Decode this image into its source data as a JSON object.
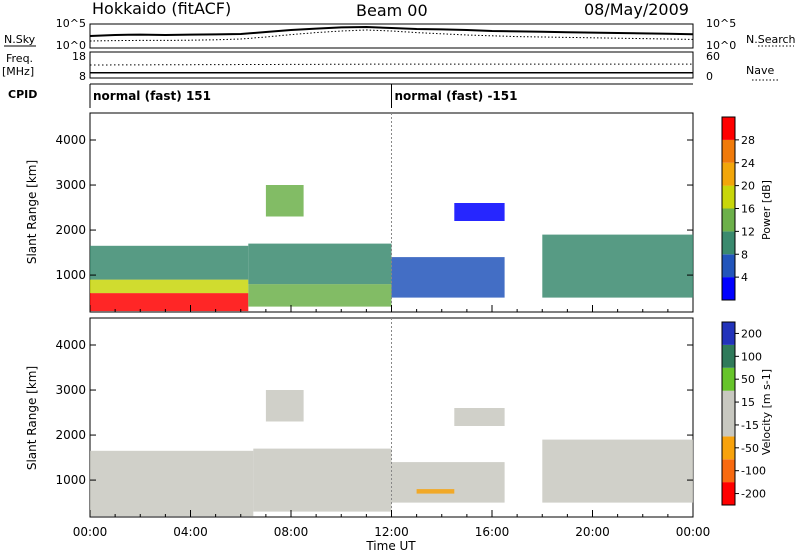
{
  "header": {
    "station": "Hokkaido (fitACF)",
    "beam": "Beam 00",
    "date": "08/May/2009"
  },
  "side_labels": {
    "nsky": "N.Sky",
    "nsearch": "N.Search",
    "freq": "Freq.",
    "mhz": "[MHz]",
    "nave": "Nave",
    "cpid": "CPID"
  },
  "colors": {
    "power": [
      "#0000ff",
      "#2255bb",
      "#3a8a6e",
      "#6cb04a",
      "#c8d60a",
      "#f2a60a",
      "#f07a0a",
      "#ff0000"
    ],
    "velocity": [
      "#ff0000",
      "#f86a10",
      "#f7a20c",
      "#c8c8c0",
      "#c8c8c0",
      "#66c42a",
      "#2f7a5a",
      "#2233bb"
    ]
  },
  "chart_data": [
    {
      "type": "line",
      "title": "",
      "ylabel_left": "N.Sky",
      "ylabel_right": "N.Search",
      "left_ticks": [
        "10^5",
        "10^0"
      ],
      "right_ticks": [
        "10^5",
        "10^0"
      ],
      "series": [
        {
          "name": "N.Sky",
          "style": "solid",
          "x": [
            0,
            1,
            2,
            3,
            4,
            5,
            6,
            7,
            8,
            9,
            10,
            11,
            12,
            13,
            14,
            15,
            16,
            17,
            18,
            19,
            20,
            21,
            22,
            23,
            24
          ],
          "y": [
            0.55,
            0.6,
            0.62,
            0.6,
            0.62,
            0.63,
            0.65,
            0.75,
            0.85,
            0.92,
            0.98,
            1.0,
            0.95,
            0.9,
            0.88,
            0.85,
            0.8,
            0.78,
            0.76,
            0.74,
            0.72,
            0.7,
            0.68,
            0.66,
            0.64
          ]
        },
        {
          "name": "N.Search",
          "style": "dotted",
          "x": [
            0,
            1,
            2,
            3,
            4,
            5,
            6,
            7,
            8,
            9,
            10,
            11,
            12,
            13,
            14,
            15,
            16,
            17,
            18,
            19,
            20,
            21,
            22,
            23,
            24
          ],
          "y": [
            0.3,
            0.32,
            0.33,
            0.33,
            0.34,
            0.36,
            0.4,
            0.5,
            0.62,
            0.72,
            0.8,
            0.85,
            0.8,
            0.72,
            0.66,
            0.6,
            0.56,
            0.52,
            0.5,
            0.48,
            0.46,
            0.44,
            0.42,
            0.4,
            0.38
          ]
        }
      ]
    },
    {
      "type": "line",
      "title": "",
      "ylabel_left": "Freq. [MHz]",
      "ylabel_right": "Nave",
      "left_ticks": [
        "18",
        "8"
      ],
      "right_ticks": [
        "60",
        "0"
      ],
      "series": [
        {
          "name": "Freq.",
          "style": "solid",
          "x": [
            0,
            12,
            24
          ],
          "y": [
            10,
            10,
            10
          ]
        },
        {
          "name": "Nave",
          "style": "dotted",
          "x": [
            0,
            12,
            24
          ],
          "y": [
            30,
            32,
            32
          ]
        }
      ]
    },
    {
      "type": "table",
      "label": "CPID",
      "segments": [
        {
          "start": 0,
          "label": "normal (fast) 151"
        },
        {
          "start": 12,
          "label": "normal (fast) -151"
        }
      ]
    },
    {
      "type": "heatmap",
      "quantity": "Power",
      "xlabel": "",
      "ylabel": "Slant Range [km]",
      "xlim": [
        0,
        24
      ],
      "ylim": [
        180,
        4600
      ],
      "yticks": [
        1000,
        2000,
        3000,
        4000
      ],
      "colorbar": {
        "label": "Power [dB]",
        "ticks": [
          4,
          8,
          12,
          16,
          20,
          24,
          28
        ]
      },
      "regions": [
        {
          "x0": 0.0,
          "x1": 6.3,
          "y0": 200,
          "y1": 600,
          "level": 7
        },
        {
          "x0": 0.0,
          "x1": 6.3,
          "y0": 600,
          "y1": 900,
          "level": 4
        },
        {
          "x0": 0.0,
          "x1": 6.3,
          "y0": 900,
          "y1": 1650,
          "level": 2
        },
        {
          "x0": 6.3,
          "x1": 12.0,
          "y0": 300,
          "y1": 800,
          "level": 3
        },
        {
          "x0": 6.3,
          "x1": 12.0,
          "y0": 800,
          "y1": 1700,
          "level": 2
        },
        {
          "x0": 7.0,
          "x1": 8.5,
          "y0": 2300,
          "y1": 3000,
          "level": 3
        },
        {
          "x0": 12.0,
          "x1": 16.5,
          "y0": 500,
          "y1": 1400,
          "level": 1
        },
        {
          "x0": 14.5,
          "x1": 16.5,
          "y0": 2200,
          "y1": 2600,
          "level": 0
        },
        {
          "x0": 18.0,
          "x1": 24.0,
          "y0": 500,
          "y1": 1900,
          "level": 2
        }
      ]
    },
    {
      "type": "heatmap",
      "quantity": "Velocity",
      "xlabel": "Time UT",
      "ylabel": "Slant Range [km]",
      "xlim": [
        0,
        24
      ],
      "ylim": [
        180,
        4600
      ],
      "xticks": [
        "00:00",
        "04:00",
        "08:00",
        "12:00",
        "16:00",
        "20:00",
        "00:00"
      ],
      "yticks": [
        1000,
        2000,
        3000,
        4000
      ],
      "colorbar": {
        "label": "Velocity [m s-1]",
        "ticks": [
          200,
          100,
          50,
          15,
          -15,
          -50,
          -100,
          -200
        ]
      },
      "regions": [
        {
          "x0": 0.0,
          "x1": 6.5,
          "y0": 200,
          "y1": 1650,
          "level": 3
        },
        {
          "x0": 6.5,
          "x1": 12.0,
          "y0": 300,
          "y1": 1700,
          "level": 3
        },
        {
          "x0": 7.0,
          "x1": 8.5,
          "y0": 2300,
          "y1": 3000,
          "level": 3
        },
        {
          "x0": 12.0,
          "x1": 16.5,
          "y0": 500,
          "y1": 1400,
          "level": 3
        },
        {
          "x0": 13.0,
          "x1": 14.5,
          "y0": 700,
          "y1": 800,
          "level": 2
        },
        {
          "x0": 14.5,
          "x1": 16.5,
          "y0": 2200,
          "y1": 2600,
          "level": 3
        },
        {
          "x0": 18.0,
          "x1": 24.0,
          "y0": 500,
          "y1": 1900,
          "level": 3
        }
      ]
    }
  ]
}
